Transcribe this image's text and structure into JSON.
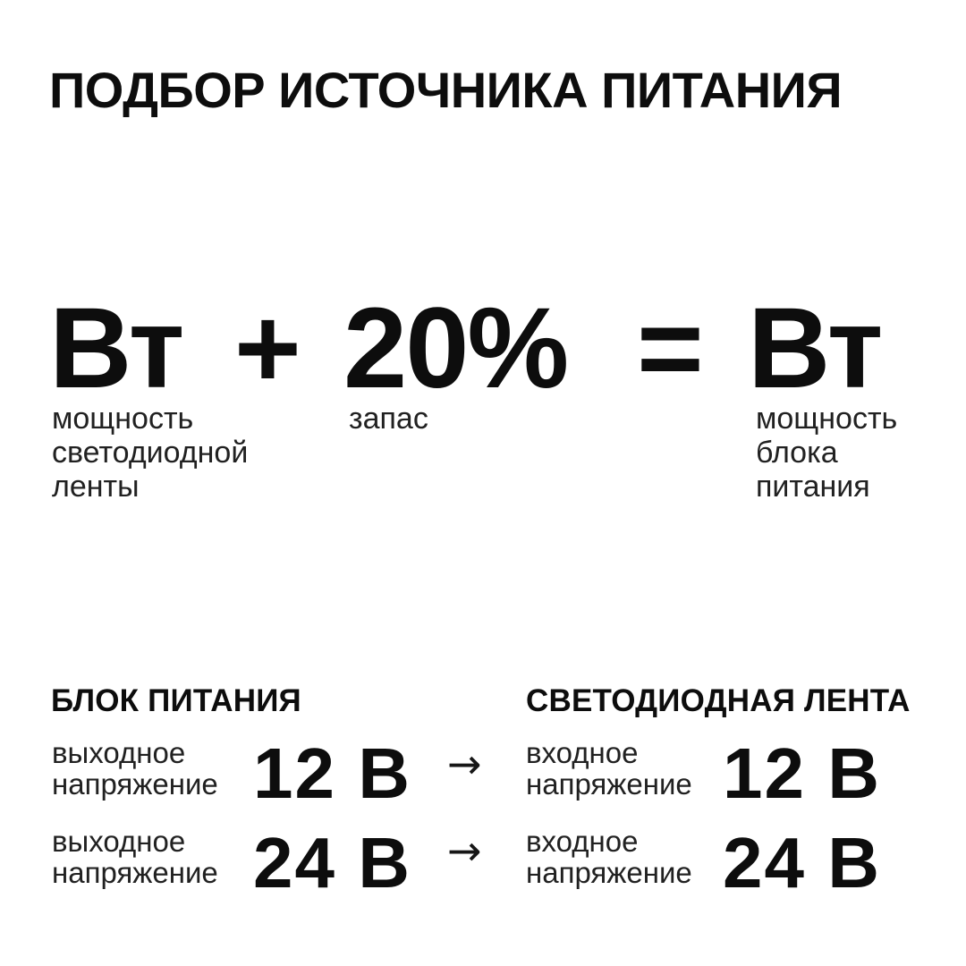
{
  "canvas": {
    "background": "#ffffff",
    "ink": "#0d0d0d",
    "secondary_ink": "#212121"
  },
  "title": "ПОДБОР ИСТОЧНИКА ПИТАНИЯ",
  "formula": {
    "strip_watts": "Вт",
    "plus": "+",
    "reserve": "20%",
    "equals": "=",
    "psu_watts": "Вт",
    "strip_watts_label": "мощность\nсветодиодной\nленты",
    "reserve_label": "запас",
    "psu_watts_label": "мощность\nблока\nпитания"
  },
  "comparison": {
    "arrow": "→",
    "psu": {
      "header": "БЛОК ПИТАНИЯ",
      "rows": [
        {
          "label": "выходное\nнапряжение",
          "value": "12 В"
        },
        {
          "label": "выходное\nнапряжение",
          "value": "24 В"
        }
      ]
    },
    "led_strip": {
      "header": "СВЕТОДИОДНАЯ ЛЕНТА",
      "rows": [
        {
          "label": "входное\nнапряжение",
          "value": "12 В"
        },
        {
          "label": "входное\nнапряжение",
          "value": "24 В"
        }
      ]
    }
  }
}
